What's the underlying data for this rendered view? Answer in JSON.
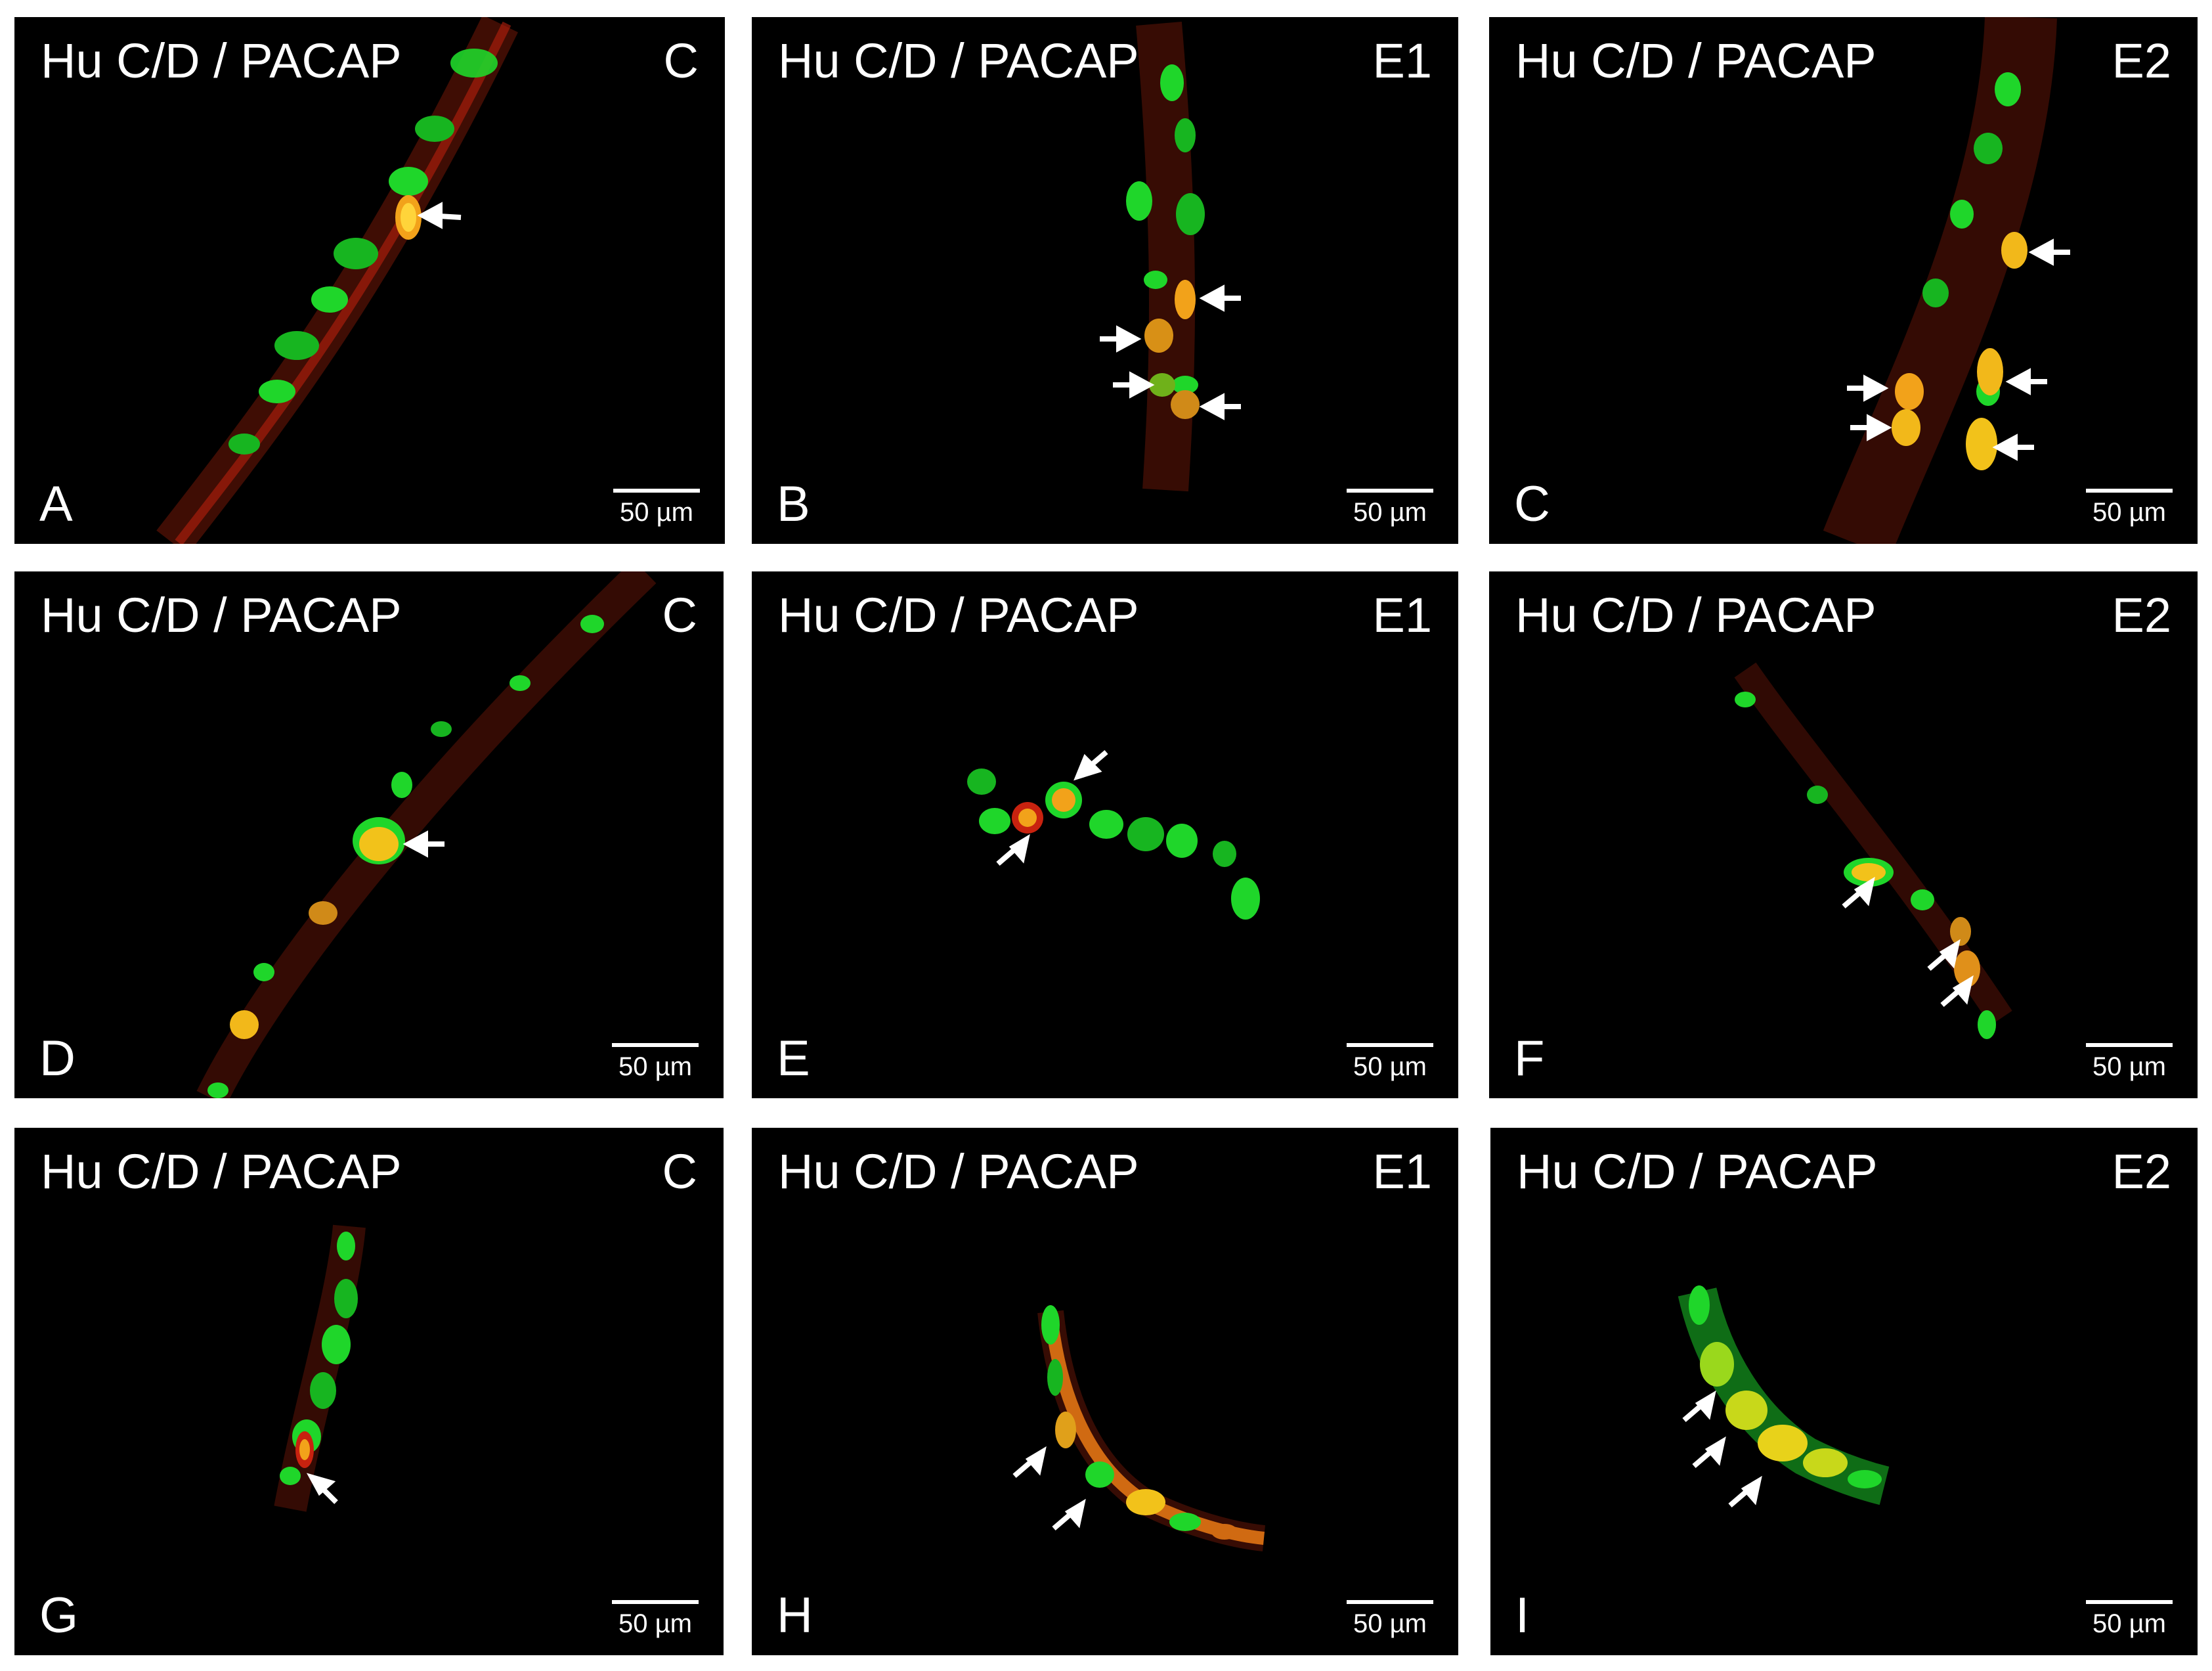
{
  "figure": {
    "colors": {
      "background": "#000000",
      "hu": "#1fd62a",
      "pacap": "#c8220f",
      "colocalized": "#f2c21a",
      "text": "#ffffff"
    },
    "panels": [
      {
        "stain": "Hu C/D / PACAP",
        "group": "C",
        "letter": "A",
        "scale": "50 µm"
      },
      {
        "stain": "Hu C/D / PACAP",
        "group": "E1",
        "letter": "B",
        "scale": "50 µm"
      },
      {
        "stain": "Hu C/D / PACAP",
        "group": "E2",
        "letter": "C",
        "scale": "50 µm"
      },
      {
        "stain": "Hu C/D / PACAP",
        "group": "C",
        "letter": "D",
        "scale": "50 µm"
      },
      {
        "stain": "Hu C/D / PACAP",
        "group": "E1",
        "letter": "E",
        "scale": "50 µm"
      },
      {
        "stain": "Hu C/D / PACAP",
        "group": "E2",
        "letter": "F",
        "scale": "50 µm"
      },
      {
        "stain": "Hu C/D / PACAP",
        "group": "C",
        "letter": "G",
        "scale": "50 µm"
      },
      {
        "stain": "Hu C/D / PACAP",
        "group": "E1",
        "letter": "H",
        "scale": "50 µm"
      },
      {
        "stain": "Hu C/D / PACAP",
        "group": "E2",
        "letter": "I",
        "scale": "50 µm"
      }
    ]
  }
}
